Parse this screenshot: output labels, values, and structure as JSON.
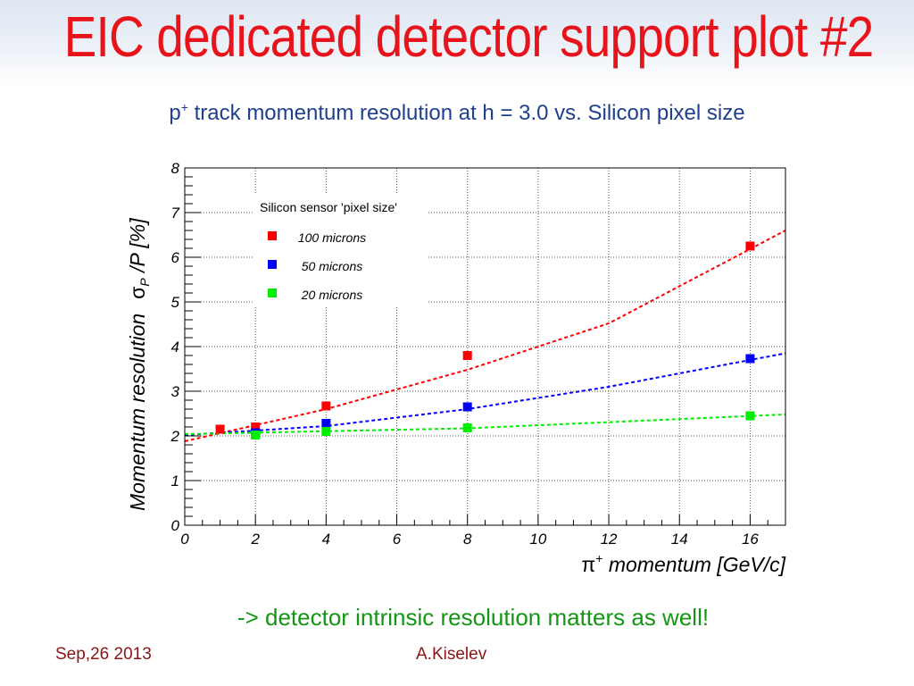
{
  "slide": {
    "title": "EIC dedicated detector support plot #2",
    "subtitle_prefix": "p",
    "subtitle_sup": "+",
    "subtitle_rest": " track momentum resolution at h = 3.0 vs. Silicon pixel size",
    "note": "-> detector intrinsic resolution matters as well!",
    "footer_date": "Sep,26 2013",
    "footer_author": "A.Kiselev"
  },
  "chart_data": {
    "type": "scatter",
    "title": "",
    "xlabel": "momentum [GeV/c]",
    "xlabel_prefix": "π",
    "xlabel_sup": "+",
    "ylabel": "Momentum resolution",
    "ylabel_symbol": "σ",
    "ylabel_sub": "P",
    "ylabel_tail": " /P  [%]",
    "xlim": [
      0,
      17
    ],
    "ylim": [
      0,
      8
    ],
    "x_ticks": [
      "0",
      "2",
      "4",
      "6",
      "8",
      "10",
      "12",
      "14",
      "16"
    ],
    "y_ticks": [
      "0",
      "1",
      "2",
      "3",
      "4",
      "5",
      "6",
      "7",
      "8"
    ],
    "grid": true,
    "legend_title": "Silicon sensor 'pixel size'",
    "legend_position": "top-left",
    "series": [
      {
        "name": "100 microns",
        "color": "#ff0000",
        "x": [
          1,
          2,
          4,
          8,
          16
        ],
        "y": [
          2.15,
          2.2,
          2.67,
          3.8,
          6.25
        ],
        "fit": [
          [
            0,
            1.88
          ],
          [
            4,
            2.6
          ],
          [
            8,
            3.48
          ],
          [
            12,
            4.52
          ],
          [
            17,
            6.6
          ]
        ]
      },
      {
        "name": "50 microns",
        "color": "#0000ff",
        "x": [
          2,
          4,
          8,
          16
        ],
        "y": [
          2.07,
          2.28,
          2.65,
          3.73
        ],
        "fit": [
          [
            0,
            2.02
          ],
          [
            4,
            2.22
          ],
          [
            8,
            2.6
          ],
          [
            12,
            3.1
          ],
          [
            17,
            3.85
          ]
        ]
      },
      {
        "name": "20 microns",
        "color": "#00ee00",
        "x": [
          2,
          4,
          8,
          16
        ],
        "y": [
          2.02,
          2.1,
          2.18,
          2.45
        ],
        "fit": [
          [
            0,
            2.04
          ],
          [
            8,
            2.17
          ],
          [
            17,
            2.48
          ]
        ]
      }
    ]
  }
}
